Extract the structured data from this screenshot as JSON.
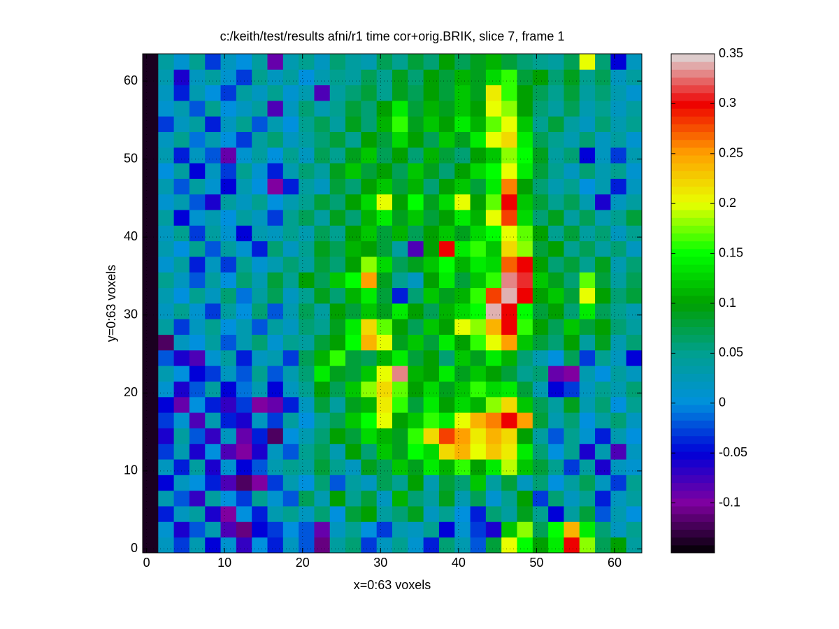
{
  "chart_data": {
    "type": "heatmap",
    "title": "c:/keith/test/results afni/r1 time cor+orig.BRIK, slice 7, frame 1",
    "xlabel": "x=0:63 voxels",
    "ylabel": "y=0:63 voxels",
    "xlim": [
      -0.5,
      63.5
    ],
    "ylim": [
      -0.5,
      63.5
    ],
    "xticks": [
      0,
      10,
      20,
      30,
      40,
      50,
      60
    ],
    "yticks": [
      0,
      10,
      20,
      30,
      40,
      50,
      60
    ],
    "grid": true,
    "zlim": [
      -0.15,
      0.35
    ],
    "zticks": [
      -0.1,
      -0.05,
      0,
      0.05,
      0.1,
      0.15,
      0.2,
      0.25,
      0.3,
      0.35
    ],
    "colormap": [
      "#000000",
      "#8000a0",
      "#0000d8",
      "#0090dd",
      "#00a090",
      "#00a000",
      "#00ff00",
      "#e8ff00",
      "#ffa000",
      "#ee0000",
      "#dddddd"
    ],
    "x": [
      0.5,
      2.5,
      4.5,
      6.5,
      8.5,
      10.5,
      12.5,
      14.5,
      16.5,
      18.5,
      20.5,
      22.5,
      24.5,
      26.5,
      28.5,
      30.5,
      32.5,
      34.5,
      36.5,
      38.5,
      40.5,
      42.5,
      44.5,
      46.5,
      48.5,
      50.5,
      52.5,
      54.5,
      56.5,
      58.5,
      60.5,
      62.5
    ],
    "y": [
      0.5,
      2.5,
      4.5,
      6.5,
      8.5,
      10.5,
      12.5,
      14.5,
      16.5,
      18.5,
      20.5,
      22.5,
      24.5,
      26.5,
      28.5,
      30.5,
      32.5,
      34.5,
      36.5,
      38.5,
      40.5,
      42.5,
      44.5,
      46.5,
      48.5,
      50.5,
      52.5,
      54.5,
      56.5,
      58.5,
      60.5,
      62.5
    ],
    "z": [
      [
        -0.14,
        0.02,
        -0.03,
        0.03,
        -0.05,
        0.01,
        -0.07,
        0.0,
        -0.04,
        0.02,
        -0.02,
        -0.11,
        0.04,
        0.06,
        -0.03,
        0.02,
        0.05,
        0.01,
        -0.04,
        0.06,
        0.03,
        -0.02,
        0.08,
        0.2,
        0.15,
        0.1,
        0.14,
        0.3,
        0.18,
        0.07,
        0.1,
        0.04
      ],
      [
        -0.14,
        0.01,
        -0.06,
        -0.02,
        0.03,
        -0.08,
        -0.11,
        -0.05,
        -0.03,
        0.0,
        -0.02,
        -0.09,
        0.02,
        0.05,
        0.0,
        -0.03,
        0.03,
        0.02,
        0.05,
        -0.05,
        0.01,
        -0.03,
        -0.06,
        0.12,
        0.18,
        0.07,
        0.15,
        0.24,
        0.14,
        0.06,
        0.02,
        0.05
      ],
      [
        -0.14,
        -0.04,
        0.02,
        0.04,
        -0.06,
        -0.1,
        0.0,
        -0.04,
        0.03,
        0.05,
        0.02,
        0.06,
        0.0,
        0.08,
        0.1,
        0.04,
        0.06,
        0.09,
        0.02,
        0.05,
        0.0,
        -0.04,
        0.06,
        0.04,
        0.09,
        0.05,
        -0.05,
        0.04,
        0.08,
        -0.02,
        0.03,
        0.0
      ],
      [
        -0.14,
        0.03,
        -0.02,
        -0.07,
        0.04,
        0.0,
        -0.03,
        0.05,
        0.01,
        -0.02,
        0.07,
        0.03,
        0.1,
        0.05,
        0.08,
        0.02,
        0.11,
        0.06,
        0.04,
        0.09,
        0.03,
        0.07,
        0.01,
        0.05,
        0.1,
        -0.03,
        0.06,
        0.02,
        0.05,
        -0.04,
        0.02,
        0.04
      ],
      [
        -0.14,
        -0.05,
        0.02,
        0.0,
        -0.04,
        -0.08,
        -0.12,
        -0.1,
        -0.03,
        0.03,
        0.0,
        0.06,
        -0.02,
        0.04,
        0.02,
        0.07,
        0.05,
        0.1,
        0.03,
        0.08,
        0.06,
        0.12,
        0.04,
        0.08,
        0.02,
        0.06,
        0.0,
        0.04,
        0.07,
        0.02,
        -0.03,
        0.05
      ],
      [
        -0.14,
        0.02,
        -0.04,
        0.04,
        -0.06,
        0.01,
        -0.05,
        -0.02,
        0.03,
        0.05,
        0.04,
        0.08,
        0.05,
        0.02,
        0.09,
        0.07,
        0.12,
        0.09,
        0.14,
        0.11,
        0.16,
        0.1,
        0.14,
        0.19,
        0.12,
        0.08,
        0.05,
        -0.03,
        0.04,
        -0.06,
        0.02,
        0.01
      ],
      [
        -0.14,
        -0.03,
        0.03,
        -0.06,
        0.0,
        -0.08,
        -0.1,
        -0.06,
        0.02,
        -0.02,
        0.05,
        0.07,
        0.03,
        0.1,
        0.06,
        0.12,
        0.09,
        0.15,
        0.13,
        0.22,
        0.24,
        0.2,
        0.23,
        0.21,
        0.14,
        0.06,
        0.0,
        0.05,
        -0.06,
        0.03,
        -0.08,
        0.02
      ],
      [
        -0.14,
        -0.06,
        0.04,
        -0.02,
        -0.07,
        0.02,
        -0.09,
        -0.04,
        -0.12,
        0.0,
        0.03,
        0.06,
        0.1,
        0.08,
        0.13,
        0.11,
        0.09,
        0.16,
        0.22,
        0.28,
        0.25,
        0.21,
        0.24,
        0.22,
        0.1,
        0.04,
        -0.02,
        0.05,
        0.01,
        -0.04,
        0.03,
        0.0
      ],
      [
        -0.14,
        -0.03,
        0.01,
        -0.08,
        0.03,
        -0.04,
        -0.06,
        0.02,
        -0.03,
        0.04,
        0.0,
        0.05,
        0.07,
        0.12,
        0.15,
        0.2,
        0.1,
        0.12,
        0.16,
        0.14,
        0.2,
        0.24,
        0.26,
        0.3,
        0.25,
        0.08,
        0.03,
        0.06,
        0.0,
        0.04,
        0.06,
        0.02
      ],
      [
        -0.14,
        -0.05,
        -0.09,
        0.0,
        -0.04,
        -0.07,
        -0.03,
        -0.1,
        -0.09,
        -0.04,
        0.02,
        0.08,
        0.04,
        0.09,
        0.11,
        0.21,
        0.16,
        0.08,
        0.14,
        0.1,
        0.13,
        0.11,
        0.18,
        0.22,
        0.12,
        0.07,
        0.04,
        0.09,
        0.03,
        0.06,
        0.0,
        0.05
      ],
      [
        -0.14,
        0.01,
        -0.06,
        -0.02,
        0.04,
        -0.05,
        -0.01,
        0.03,
        -0.05,
        0.02,
        0.05,
        0.1,
        0.07,
        0.12,
        0.18,
        0.22,
        0.17,
        0.1,
        0.13,
        0.09,
        0.12,
        0.16,
        0.13,
        0.14,
        0.08,
        0.03,
        -0.05,
        -0.03,
        0.02,
        0.05,
        0.03,
        0.06
      ],
      [
        -0.14,
        0.03,
        0.0,
        -0.05,
        -0.03,
        0.02,
        -0.02,
        0.05,
        -0.02,
        0.03,
        0.06,
        0.14,
        0.09,
        0.08,
        0.12,
        0.2,
        0.33,
        0.11,
        0.1,
        0.14,
        0.09,
        0.12,
        0.1,
        0.08,
        0.05,
        0.06,
        -0.09,
        -0.1,
        0.03,
        0.0,
        0.04,
        0.02
      ],
      [
        -0.14,
        -0.02,
        -0.06,
        -0.08,
        0.01,
        0.04,
        -0.04,
        0.02,
        0.03,
        -0.03,
        0.07,
        0.11,
        0.16,
        0.08,
        0.07,
        0.11,
        0.14,
        0.08,
        0.1,
        0.06,
        0.12,
        0.09,
        0.14,
        0.11,
        0.06,
        0.03,
        0.0,
        0.07,
        -0.03,
        0.05,
        0.02,
        -0.05
      ],
      [
        -0.14,
        -0.12,
        0.02,
        0.0,
        0.04,
        -0.02,
        0.03,
        0.06,
        0.01,
        0.05,
        0.04,
        0.08,
        0.1,
        0.15,
        0.24,
        0.2,
        0.09,
        0.12,
        0.08,
        0.14,
        0.1,
        0.16,
        0.2,
        0.25,
        0.12,
        0.08,
        0.06,
        0.1,
        0.04,
        0.09,
        0.03,
        0.06
      ],
      [
        -0.14,
        0.04,
        -0.03,
        0.02,
        0.05,
        0.0,
        0.03,
        -0.02,
        0.04,
        0.02,
        0.06,
        0.05,
        0.09,
        0.14,
        0.22,
        0.17,
        0.1,
        0.07,
        0.12,
        0.1,
        0.2,
        0.18,
        0.24,
        0.3,
        0.16,
        0.1,
        0.07,
        0.12,
        0.08,
        0.1,
        0.06,
        0.04
      ],
      [
        -0.14,
        0.02,
        0.05,
        0.01,
        -0.03,
        0.04,
        0.0,
        0.06,
        -0.02,
        0.03,
        0.07,
        0.04,
        0.1,
        0.08,
        0.12,
        0.09,
        0.14,
        0.1,
        0.07,
        0.11,
        0.13,
        0.15,
        0.34,
        0.3,
        0.15,
        0.08,
        0.1,
        0.06,
        0.14,
        0.07,
        0.05,
        0.03
      ],
      [
        -0.14,
        0.03,
        0.0,
        0.05,
        0.02,
        0.06,
        -0.01,
        0.04,
        0.07,
        0.02,
        0.05,
        0.09,
        0.06,
        0.11,
        0.14,
        0.08,
        -0.04,
        0.06,
        0.12,
        0.09,
        0.11,
        0.16,
        0.28,
        0.34,
        0.3,
        0.1,
        0.12,
        0.08,
        0.2,
        0.1,
        0.06,
        0.08
      ],
      [
        -0.14,
        0.05,
        0.02,
        -0.02,
        0.04,
        0.0,
        0.06,
        0.03,
        0.08,
        0.05,
        0.1,
        0.07,
        0.12,
        0.15,
        0.25,
        0.09,
        0.05,
        0.02,
        0.1,
        0.14,
        0.08,
        0.12,
        0.16,
        0.33,
        0.31,
        0.12,
        0.09,
        0.06,
        0.17,
        0.08,
        0.04,
        0.07
      ],
      [
        -0.14,
        0.01,
        0.04,
        -0.04,
        0.02,
        -0.03,
        0.05,
        0.01,
        0.03,
        0.06,
        0.04,
        0.08,
        0.06,
        0.1,
        0.18,
        0.13,
        0.07,
        0.09,
        0.12,
        0.15,
        0.11,
        0.14,
        0.13,
        0.27,
        0.3,
        0.1,
        0.06,
        0.08,
        0.05,
        0.09,
        0.03,
        0.06
      ],
      [
        -0.14,
        0.03,
        0.0,
        0.05,
        -0.02,
        0.04,
        0.01,
        -0.04,
        0.06,
        0.02,
        0.05,
        0.09,
        0.07,
        0.11,
        0.1,
        0.08,
        0.04,
        -0.08,
        0.1,
        0.3,
        0.14,
        0.16,
        0.12,
        0.22,
        0.18,
        0.08,
        0.1,
        0.05,
        0.07,
        0.04,
        0.06,
        0.02
      ],
      [
        -0.14,
        0.02,
        0.05,
        -0.03,
        0.04,
        0.01,
        -0.05,
        0.03,
        0.02,
        0.05,
        0.03,
        0.07,
        0.05,
        0.1,
        0.12,
        0.08,
        0.11,
        0.07,
        0.1,
        0.12,
        0.09,
        0.13,
        0.15,
        0.2,
        0.17,
        0.1,
        0.05,
        0.08,
        0.04,
        0.06,
        0.02,
        0.05
      ],
      [
        -0.14,
        0.04,
        -0.05,
        0.01,
        0.03,
        0.0,
        0.04,
        0.02,
        -0.03,
        0.05,
        0.07,
        0.04,
        0.09,
        0.06,
        0.11,
        0.14,
        0.09,
        0.12,
        0.08,
        0.1,
        0.14,
        0.11,
        0.2,
        0.28,
        0.13,
        0.06,
        0.09,
        0.04,
        0.07,
        0.03,
        0.05,
        0.08
      ],
      [
        -0.14,
        0.01,
        0.03,
        -0.02,
        -0.06,
        0.04,
        0.02,
        0.05,
        0.0,
        0.03,
        0.05,
        0.08,
        0.06,
        0.1,
        0.13,
        0.2,
        0.1,
        0.15,
        0.09,
        0.13,
        0.2,
        0.1,
        0.17,
        0.3,
        0.12,
        0.08,
        0.05,
        0.07,
        0.03,
        -0.06,
        0.02,
        0.04
      ],
      [
        -0.14,
        0.03,
        -0.02,
        0.04,
        0.01,
        -0.05,
        0.03,
        0.0,
        -0.1,
        -0.04,
        0.04,
        0.02,
        0.08,
        0.06,
        0.1,
        0.12,
        0.08,
        0.11,
        0.06,
        0.1,
        0.12,
        0.08,
        0.14,
        0.26,
        0.1,
        0.06,
        0.03,
        0.05,
        0.0,
        0.03,
        -0.04,
        0.02
      ],
      [
        -0.14,
        0.0,
        0.04,
        -0.05,
        0.02,
        -0.03,
        0.05,
        0.01,
        -0.04,
        0.03,
        0.06,
        0.04,
        0.09,
        0.12,
        0.08,
        0.1,
        0.07,
        0.12,
        0.09,
        0.06,
        0.1,
        0.13,
        0.15,
        0.2,
        0.14,
        0.08,
        0.05,
        0.02,
        0.06,
        0.03,
        0.05,
        0.01
      ],
      [
        -0.14,
        0.03,
        -0.04,
        0.02,
        -0.02,
        -0.09,
        0.01,
        0.04,
        0.0,
        0.05,
        0.02,
        0.07,
        0.05,
        0.09,
        0.12,
        0.07,
        0.1,
        0.06,
        0.11,
        0.08,
        0.06,
        0.1,
        0.12,
        0.18,
        0.15,
        0.09,
        0.04,
        0.06,
        -0.05,
        0.02,
        -0.03,
        0.03
      ],
      [
        -0.14,
        0.02,
        0.05,
        -0.01,
        0.03,
        0.0,
        -0.03,
        0.04,
        0.06,
        0.02,
        0.04,
        0.06,
        0.08,
        0.05,
        0.1,
        0.08,
        0.13,
        0.1,
        0.07,
        0.12,
        0.09,
        0.14,
        0.2,
        0.22,
        0.14,
        0.07,
        0.05,
        0.03,
        0.06,
        0.02,
        0.04,
        0.01
      ],
      [
        -0.14,
        -0.03,
        0.02,
        0.04,
        -0.04,
        0.02,
        0.05,
        -0.02,
        0.03,
        0.0,
        0.05,
        0.07,
        0.04,
        0.09,
        0.06,
        0.11,
        0.16,
        0.09,
        0.12,
        0.1,
        0.14,
        0.11,
        0.17,
        0.2,
        0.12,
        0.05,
        0.08,
        0.04,
        0.02,
        0.06,
        0.03,
        0.05
      ],
      [
        -0.14,
        0.01,
        0.03,
        -0.02,
        0.05,
        0.0,
        0.02,
        0.04,
        -0.08,
        0.02,
        0.06,
        0.03,
        0.05,
        0.08,
        0.06,
        0.1,
        0.14,
        0.08,
        0.11,
        0.09,
        0.12,
        0.1,
        0.2,
        0.18,
        0.1,
        0.06,
        0.04,
        0.07,
        0.03,
        0.05,
        0.02,
        0.04
      ],
      [
        -0.14,
        0.02,
        -0.04,
        0.03,
        0.0,
        -0.03,
        0.04,
        0.02,
        0.05,
        0.01,
        0.03,
        -0.08,
        0.04,
        0.06,
        0.08,
        0.05,
        0.09,
        0.07,
        0.1,
        0.08,
        0.12,
        0.09,
        0.21,
        0.16,
        0.1,
        0.07,
        0.05,
        0.08,
        0.04,
        0.06,
        0.03,
        0.01
      ],
      [
        -0.14,
        0.03,
        -0.06,
        0.02,
        0.04,
        0.01,
        -0.03,
        0.05,
        0.02,
        0.04,
        0.0,
        0.03,
        0.05,
        0.04,
        0.07,
        0.05,
        0.09,
        0.06,
        0.1,
        0.08,
        0.11,
        0.09,
        0.13,
        0.16,
        0.08,
        0.1,
        0.06,
        0.09,
        0.05,
        0.07,
        0.02,
        0.04
      ],
      [
        -0.14,
        0.04,
        0.01,
        0.05,
        -0.03,
        0.02,
        0.0,
        0.04,
        -0.09,
        0.03,
        0.05,
        0.02,
        0.06,
        0.04,
        0.03,
        0.07,
        0.05,
        0.08,
        0.06,
        0.1,
        0.07,
        0.09,
        0.11,
        0.08,
        0.06,
        0.05,
        0.04,
        0.07,
        0.2,
        0.06,
        -0.05,
        0.02
      ]
    ]
  }
}
